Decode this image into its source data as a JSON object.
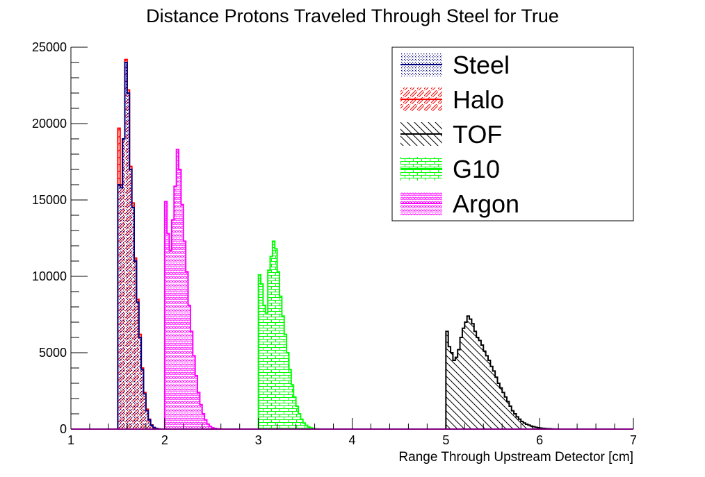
{
  "chart_data": {
    "type": "histogram",
    "title": "Distance Protons Traveled Through Steel for True",
    "xlabel": "Range Through Upstream Detector [cm]",
    "ylabel": "",
    "xlim": [
      1,
      7
    ],
    "ylim": [
      0,
      25000
    ],
    "x_ticks": [
      "1",
      "2",
      "3",
      "4",
      "5",
      "6",
      "7"
    ],
    "y_ticks": [
      "0",
      "5000",
      "10000",
      "15000",
      "20000",
      "25000"
    ],
    "legend_position": "top-right",
    "bin_width": 0.025,
    "series": [
      {
        "name": "Steel",
        "color": "#000080",
        "hatch": "dots",
        "start": 1.5,
        "values": [
          16000,
          15800,
          19000,
          24000,
          22000,
          17000,
          14500,
          11000,
          8300,
          6000,
          3900,
          2300,
          1200,
          600,
          250,
          100,
          40,
          10,
          0
        ]
      },
      {
        "name": "Halo",
        "color": "#ff0000",
        "hatch": "diagonal",
        "start": 1.5,
        "values": [
          19700,
          16000,
          19000,
          24200,
          22200,
          17200,
          14800,
          11200,
          8500,
          6200,
          4000,
          2400,
          1300,
          650,
          270,
          110,
          40,
          10,
          0
        ]
      },
      {
        "name": "TOF",
        "color": "#000000",
        "hatch": "back-diagonal",
        "start": 5.0,
        "values": [
          6400,
          5400,
          5000,
          4500,
          4700,
          5200,
          6000,
          6600,
          7000,
          7400,
          7200,
          6900,
          6400,
          6000,
          5800,
          5500,
          5100,
          4800,
          4500,
          4100,
          3800,
          3400,
          3000,
          2700,
          2400,
          2100,
          1800,
          1500,
          1200,
          1000,
          800,
          650,
          500,
          400,
          320,
          260,
          200,
          160,
          120,
          90,
          70,
          50,
          40,
          30,
          20,
          10,
          5,
          0
        ]
      },
      {
        "name": "G10",
        "color": "#00ff00",
        "hatch": "brick",
        "start": 3.0,
        "values": [
          10100,
          9500,
          8100,
          7600,
          10400,
          11300,
          12300,
          11800,
          10300,
          8700,
          7400,
          6200,
          5000,
          3900,
          2900,
          2100,
          1500,
          1000,
          650,
          400,
          250,
          140,
          80,
          40,
          20,
          10,
          0
        ]
      },
      {
        "name": "Argon",
        "color": "#ff00ff",
        "hatch": "scales",
        "start": 2.0,
        "values": [
          14900,
          12800,
          11700,
          13700,
          15900,
          18300,
          17000,
          14700,
          12300,
          10300,
          8100,
          6400,
          4800,
          3500,
          2400,
          1600,
          1000,
          600,
          330,
          180,
          90,
          45,
          20,
          10,
          0
        ]
      }
    ]
  }
}
